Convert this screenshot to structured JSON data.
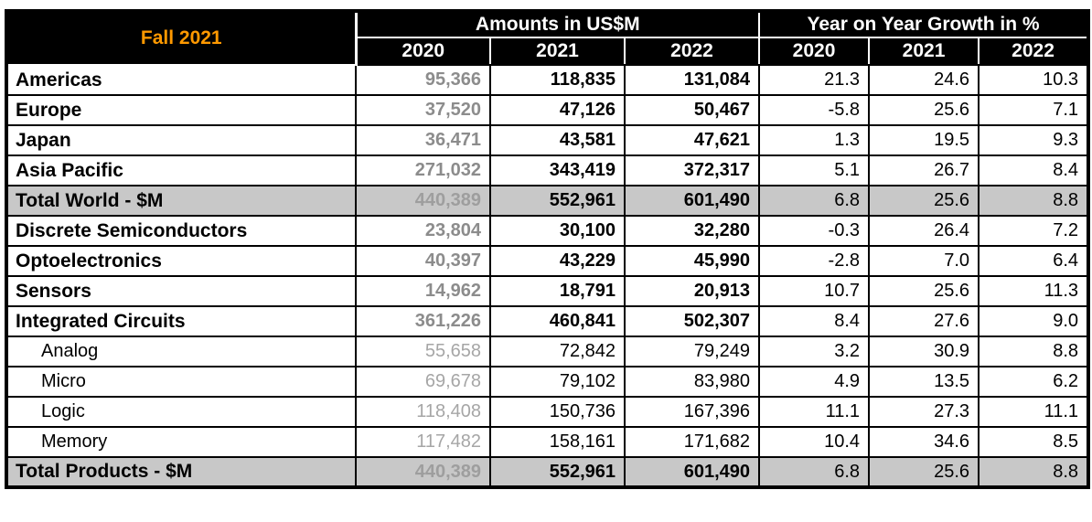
{
  "report": {
    "season_label": "Fall 2021"
  },
  "colors": {
    "header_background": "#000000",
    "header_text": "#FFFFFF",
    "accent_orange": "#FF9900",
    "total_row_background": "#C8C8C8",
    "muted_2020_number": "#8C8C8C"
  },
  "table": {
    "corner_label": "Fall 2021",
    "group_headers": [
      {
        "label": "Amounts in US$M"
      },
      {
        "label": "Year on Year Growth in %"
      }
    ],
    "year_headers": [
      "2020",
      "2021",
      "2022",
      "2020",
      "2021",
      "2022"
    ],
    "rows": [
      {
        "label": "Americas",
        "type": "main",
        "amounts": [
          "95,366",
          "118,835",
          "131,084"
        ],
        "growth": [
          "21.3",
          "24.6",
          "10.3"
        ]
      },
      {
        "label": "Europe",
        "type": "main",
        "amounts": [
          "37,520",
          "47,126",
          "50,467"
        ],
        "growth": [
          "-5.8",
          "25.6",
          "7.1"
        ]
      },
      {
        "label": "Japan",
        "type": "main",
        "amounts": [
          "36,471",
          "43,581",
          "47,621"
        ],
        "growth": [
          "1.3",
          "19.5",
          "9.3"
        ]
      },
      {
        "label": "Asia Pacific",
        "type": "main",
        "amounts": [
          "271,032",
          "343,419",
          "372,317"
        ],
        "growth": [
          "5.1",
          "26.7",
          "8.4"
        ]
      },
      {
        "label": "Total World - $M",
        "type": "total",
        "amounts": [
          "440,389",
          "552,961",
          "601,490"
        ],
        "growth": [
          "6.8",
          "25.6",
          "8.8"
        ]
      },
      {
        "label": "Discrete Semiconductors",
        "type": "main",
        "amounts": [
          "23,804",
          "30,100",
          "32,280"
        ],
        "growth": [
          "-0.3",
          "26.4",
          "7.2"
        ]
      },
      {
        "label": "Optoelectronics",
        "type": "main",
        "amounts": [
          "40,397",
          "43,229",
          "45,990"
        ],
        "growth": [
          "-2.8",
          "7.0",
          "6.4"
        ]
      },
      {
        "label": "Sensors",
        "type": "main",
        "amounts": [
          "14,962",
          "18,791",
          "20,913"
        ],
        "growth": [
          "10.7",
          "25.6",
          "11.3"
        ]
      },
      {
        "label": "Integrated Circuits",
        "type": "main",
        "amounts": [
          "361,226",
          "460,841",
          "502,307"
        ],
        "growth": [
          "8.4",
          "27.6",
          "9.0"
        ]
      },
      {
        "label": "Analog",
        "type": "sub",
        "amounts": [
          "55,658",
          "72,842",
          "79,249"
        ],
        "growth": [
          "3.2",
          "30.9",
          "8.8"
        ]
      },
      {
        "label": "Micro",
        "type": "sub",
        "amounts": [
          "69,678",
          "79,102",
          "83,980"
        ],
        "growth": [
          "4.9",
          "13.5",
          "6.2"
        ]
      },
      {
        "label": "Logic",
        "type": "sub",
        "amounts": [
          "118,408",
          "150,736",
          "167,396"
        ],
        "growth": [
          "11.1",
          "27.3",
          "11.1"
        ]
      },
      {
        "label": "Memory",
        "type": "sub",
        "amounts": [
          "117,482",
          "158,161",
          "171,682"
        ],
        "growth": [
          "10.4",
          "34.6",
          "8.5"
        ]
      },
      {
        "label": "Total Products - $M",
        "type": "total",
        "amounts": [
          "440,389",
          "552,961",
          "601,490"
        ],
        "growth": [
          "6.8",
          "25.6",
          "8.8"
        ]
      }
    ]
  }
}
